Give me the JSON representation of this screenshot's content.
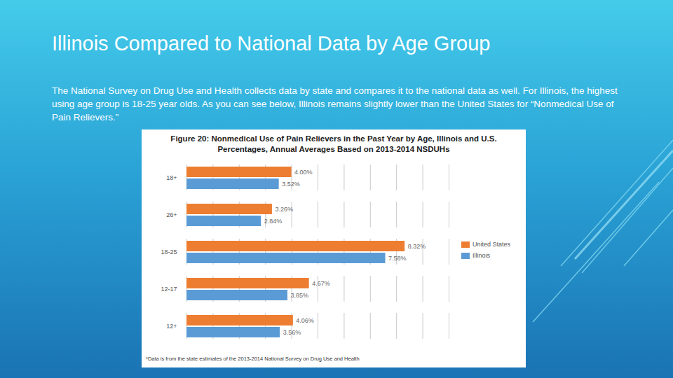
{
  "slide": {
    "title": "Illinois Compared to National Data by Age Group",
    "text": "The National Survey on Drug Use and Health collects data by state and compares it to the national data as well. For Illinois, the highest using age group is 18-25 year olds. As you can see below, Illinois remains slightly lower than the United States for “Nonmedical Use of Pain Relievers.”",
    "footnote": "*Data is from the state estimates of the 2013-2014 National Survey on Drug Use and Health"
  },
  "chart_data": {
    "type": "bar",
    "orientation": "horizontal",
    "title": "Figure 20: Nonmedical Use of Pain Relievers in the Past Year by Age, Illinois and U.S. Percentages, Annual Averages Based on 2013-2014 NSDUHs",
    "categories": [
      "18+",
      "26+",
      "18-25",
      "12-17",
      "12+"
    ],
    "series": [
      {
        "name": "United States",
        "color": "#ed7d31",
        "values": [
          4.0,
          3.26,
          8.32,
          4.67,
          4.06
        ],
        "value_labels": [
          "4.00%",
          "3.26%",
          "8.32%",
          "4.67%",
          "4.06%"
        ]
      },
      {
        "name": "Illinois",
        "color": "#5b9bd5",
        "values": [
          3.52,
          2.84,
          7.58,
          3.85,
          3.56
        ],
        "value_labels": [
          "3.52%",
          "2.84%",
          "7.58%",
          "3.85%",
          "3.56%"
        ]
      }
    ],
    "xlim": [
      0,
      10
    ],
    "xticks": [
      0,
      1,
      2,
      3,
      4,
      5,
      6,
      7,
      8,
      9,
      10
    ],
    "grid": true,
    "tick_labels": "y",
    "data_labels": true,
    "legend": "right"
  }
}
